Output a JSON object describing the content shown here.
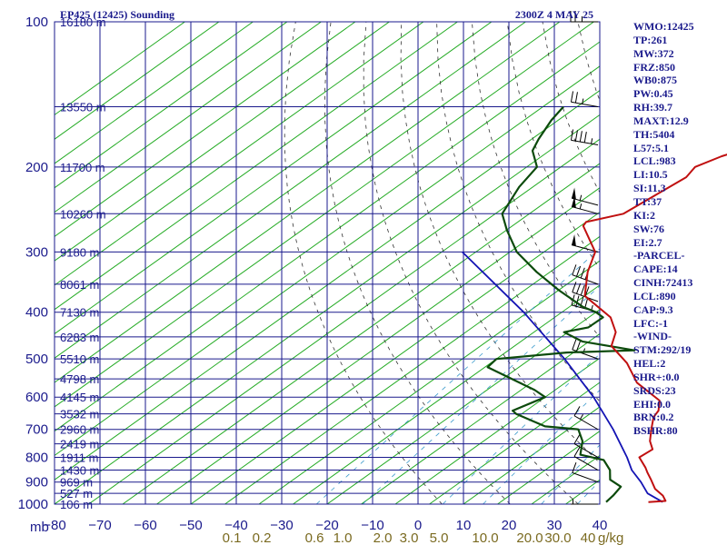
{
  "header": {
    "title": "EP425 (12425) Sounding",
    "timestamp": "2300Z  4 MAY 25"
  },
  "indices": [
    "WMO:12425",
    "TP:261",
    "MW:372",
    "FRZ:850",
    "WB0:875",
    "PW:0.45",
    "RH:39.7",
    "MAXT:12.9",
    "TH:5404",
    "L57:5.1",
    "LCL:983",
    "LI:10.5",
    "SI:11.3",
    "TT:37",
    "KI:2",
    "SW:76",
    "EI:2.7",
    "-PARCEL-",
    "CAPE:14",
    "CINH:72413",
    "LCL:890",
    "CAP:9.3",
    "LFC:-1",
    "-WIND-",
    "STM:292/19",
    "HEL:2",
    "SHR+:0.0",
    "SRDS:23",
    "EHI:0.0",
    "BRN:0.2",
    "BSHR:80"
  ],
  "colors": {
    "temperature": "#c01010",
    "dewpoint": "#0c4a0c",
    "parcel": "#1414b4",
    "grid": "#1a1a8c",
    "isotherm": "#22aa22",
    "dry_adiabat": "#333333",
    "mixing_ratio": "#3a9acc",
    "text": "#1a1a8c"
  },
  "chart_data": {
    "type": "skew-t",
    "pressure_unit": "mb",
    "x_axis_unit": "°C",
    "mixing_ratio_unit": "g/kg",
    "pressure_range": [
      1000,
      100
    ],
    "temperature_range": [
      -80,
      0
    ],
    "pressure_ticks": [
      100,
      200,
      300,
      400,
      500,
      600,
      700,
      800,
      900,
      1000
    ],
    "temperature_ticks": [
      -80,
      -70,
      -60,
      -50,
      -40,
      -30,
      -20,
      -10,
      0,
      10,
      20,
      30,
      40
    ],
    "mixing_ratio_ticks": [
      "0.1",
      "0.2",
      "0.6",
      "1.0",
      "2.0",
      "3.0",
      "5.0",
      "10.0",
      "20.0",
      "30.0",
      "40"
    ],
    "height_labels": [
      {
        "p": 100,
        "label": "16180 m"
      },
      {
        "p": 150,
        "label": "13550 m"
      },
      {
        "p": 200,
        "label": "11700 m"
      },
      {
        "p": 250,
        "label": "10260 m"
      },
      {
        "p": 300,
        "label": "9180 m"
      },
      {
        "p": 350,
        "label": "8061 m"
      },
      {
        "p": 400,
        "label": "7130 m"
      },
      {
        "p": 450,
        "label": "6283 m"
      },
      {
        "p": 500,
        "label": "5510 m"
      },
      {
        "p": 550,
        "label": "4798 m"
      },
      {
        "p": 600,
        "label": "4145 m"
      },
      {
        "p": 650,
        "label": "3532 m"
      },
      {
        "p": 700,
        "label": "2960 m"
      },
      {
        "p": 750,
        "label": "2419 m"
      },
      {
        "p": 800,
        "label": "1911 m"
      },
      {
        "p": 850,
        "label": "1430 m"
      },
      {
        "p": 900,
        "label": "969 m"
      },
      {
        "p": 950,
        "label": "527 m"
      },
      {
        "p": 1000,
        "label": "106 m"
      }
    ],
    "temperature_profile": [
      {
        "p": 990,
        "t": 6.7
      },
      {
        "p": 985,
        "t": 9.0
      },
      {
        "p": 960,
        "t": 7.5
      },
      {
        "p": 930,
        "t": 5.0
      },
      {
        "p": 890,
        "t": 2.5
      },
      {
        "p": 860,
        "t": 0.5
      },
      {
        "p": 840,
        "t": -0.8
      },
      {
        "p": 800,
        "t": -3.8
      },
      {
        "p": 770,
        "t": -3.5
      },
      {
        "p": 740,
        "t": -5.6
      },
      {
        "p": 700,
        "t": -7.8
      },
      {
        "p": 660,
        "t": -10.0
      },
      {
        "p": 640,
        "t": -10.6
      },
      {
        "p": 610,
        "t": -12.5
      },
      {
        "p": 560,
        "t": -19.5
      },
      {
        "p": 510,
        "t": -25.0
      },
      {
        "p": 470,
        "t": -30.8
      },
      {
        "p": 440,
        "t": -33.0
      },
      {
        "p": 410,
        "t": -36.8
      },
      {
        "p": 370,
        "t": -45.0
      },
      {
        "p": 330,
        "t": -49.5
      },
      {
        "p": 300,
        "t": -52.5
      },
      {
        "p": 265,
        "t": -59.6
      },
      {
        "p": 260,
        "t": -60.0
      },
      {
        "p": 250,
        "t": -56.2
      },
      {
        "p": 210,
        "t": -54.5
      },
      {
        "p": 200,
        "t": -55.3
      },
      {
        "p": 190,
        "t": -53.6
      },
      {
        "p": 170,
        "t": -47.7
      },
      {
        "p": 160,
        "t": -45.0
      },
      {
        "p": 150,
        "t": -43.0
      },
      {
        "p": 100,
        "t": -35.8
      }
    ],
    "dewpoint_profile": [
      {
        "p": 990,
        "t": 0.5
      },
      {
        "p": 960,
        "t": 0.2
      },
      {
        "p": 920,
        "t": -0.5
      },
      {
        "p": 890,
        "t": -3.5
      },
      {
        "p": 850,
        "t": -5.5
      },
      {
        "p": 810,
        "t": -8.5
      },
      {
        "p": 790,
        "t": -13.0
      },
      {
        "p": 740,
        "t": -15.5
      },
      {
        "p": 700,
        "t": -18.5
      },
      {
        "p": 690,
        "t": -24.0
      },
      {
        "p": 650,
        "t": -30.8
      },
      {
        "p": 640,
        "t": -32.0
      },
      {
        "p": 600,
        "t": -30.0
      },
      {
        "p": 580,
        "t": -33.0
      },
      {
        "p": 520,
        "t": -44.6
      },
      {
        "p": 500,
        "t": -45.0
      },
      {
        "p": 485,
        "t": -36.0
      },
      {
        "p": 480,
        "t": -26.5
      },
      {
        "p": 460,
        "t": -36.0
      },
      {
        "p": 440,
        "t": -40.6
      },
      {
        "p": 430,
        "t": -38.0
      },
      {
        "p": 410,
        "t": -37.9
      },
      {
        "p": 400,
        "t": -40.0
      },
      {
        "p": 390,
        "t": -43.0
      },
      {
        "p": 360,
        "t": -50.0
      },
      {
        "p": 330,
        "t": -57.0
      },
      {
        "p": 300,
        "t": -64.0
      },
      {
        "p": 270,
        "t": -70.0
      },
      {
        "p": 250,
        "t": -74.0
      },
      {
        "p": 220,
        "t": -77.0
      },
      {
        "p": 200,
        "t": -78.5
      },
      {
        "p": 185,
        "t": -82.5
      },
      {
        "p": 175,
        "t": -84.0
      },
      {
        "p": 160,
        "t": -86.0
      },
      {
        "p": 150,
        "t": -87.0
      }
    ],
    "parcel_profile": [
      {
        "p": 990,
        "t": 8.8
      },
      {
        "p": 950,
        "t": 4.8
      },
      {
        "p": 900,
        "t": 1.5
      },
      {
        "p": 850,
        "t": -2.3
      },
      {
        "p": 800,
        "t": -5.6
      },
      {
        "p": 700,
        "t": -13.4
      },
      {
        "p": 600,
        "t": -22.9
      },
      {
        "p": 500,
        "t": -35.0
      },
      {
        "p": 400,
        "t": -50.6
      },
      {
        "p": 300,
        "t": -72.0
      }
    ],
    "wind_barbs": [
      {
        "p": 1000,
        "dir": 270,
        "kt": 5
      },
      {
        "p": 900,
        "dir": 290,
        "kt": 10
      },
      {
        "p": 850,
        "dir": 300,
        "kt": 10
      },
      {
        "p": 800,
        "dir": 300,
        "kt": 10
      },
      {
        "p": 700,
        "dir": 300,
        "kt": 15
      },
      {
        "p": 500,
        "dir": 290,
        "kt": 25
      },
      {
        "p": 400,
        "dir": 285,
        "kt": 45
      },
      {
        "p": 380,
        "dir": 290,
        "kt": 40
      },
      {
        "p": 350,
        "dir": 290,
        "kt": 40
      },
      {
        "p": 300,
        "dir": 285,
        "kt": 50
      },
      {
        "p": 250,
        "dir": 285,
        "kt": 55
      },
      {
        "p": 240,
        "dir": 285,
        "kt": 55
      },
      {
        "p": 180,
        "dir": 280,
        "kt": 45
      },
      {
        "p": 150,
        "dir": 280,
        "kt": 25
      },
      {
        "p": 100,
        "dir": 270,
        "kt": 25
      }
    ]
  }
}
